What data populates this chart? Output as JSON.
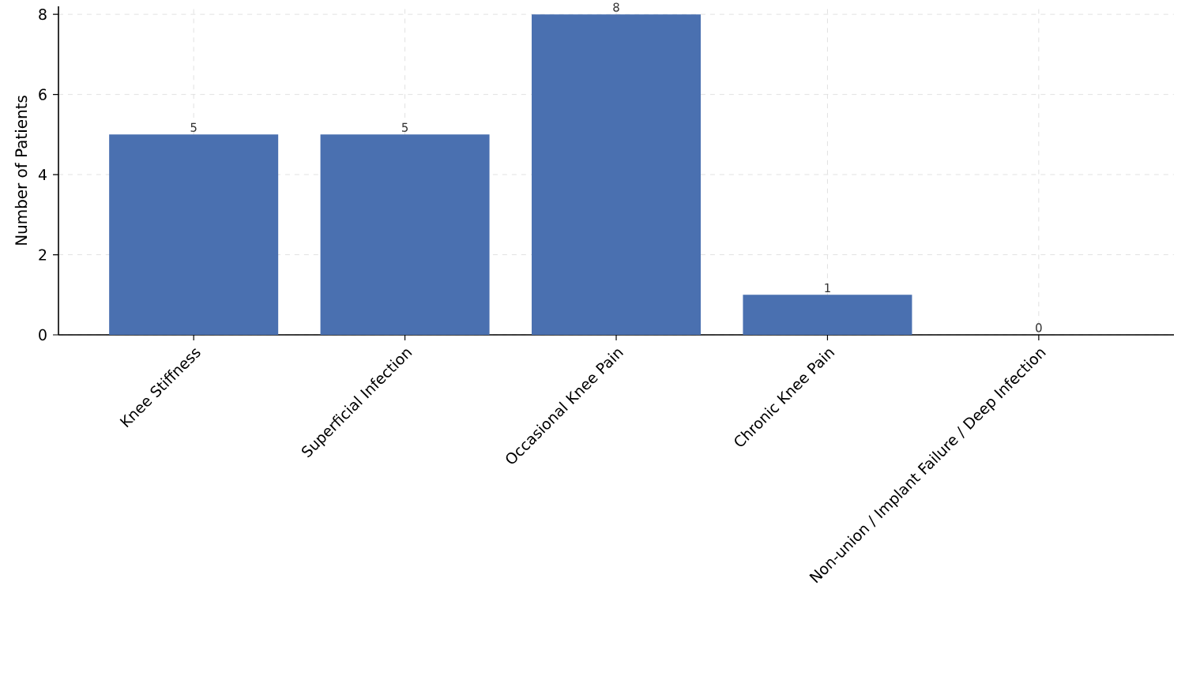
{
  "chart_data": {
    "type": "bar",
    "ylabel": "Number of Patients",
    "categories": [
      "Knee Stiffness",
      "Superficial Infection",
      "Occasional Knee Pain",
      "Chronic Knee Pain",
      "Non-union / Implant Failure / Deep Infection"
    ],
    "values": [
      5,
      5,
      8,
      1,
      0
    ],
    "color": "#4a70b0",
    "data_labels": true,
    "ylim": [
      0,
      8.2
    ],
    "yticks": [
      0,
      2,
      4,
      6,
      8
    ],
    "grid": true
  }
}
